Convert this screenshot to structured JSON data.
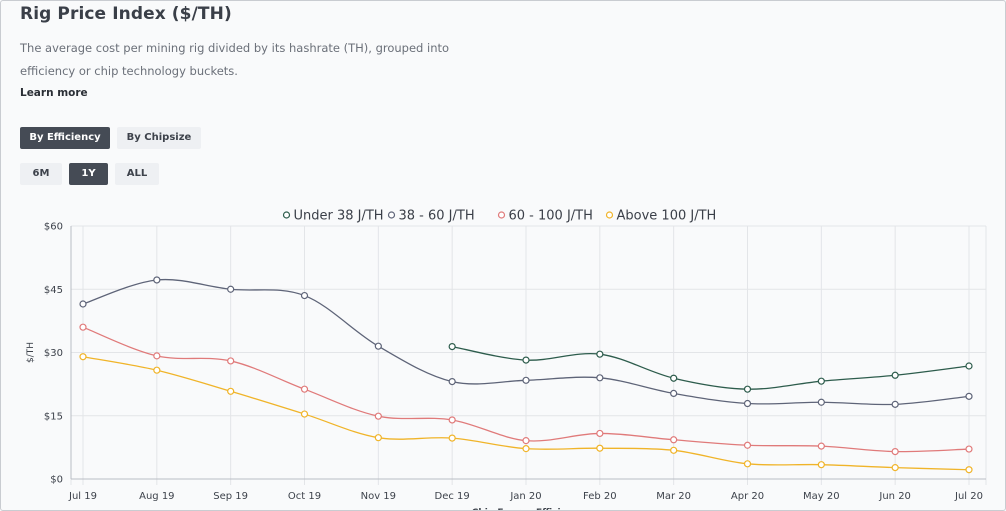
{
  "header": {
    "title": "Rig Price Index ($/TH)",
    "description": "The average cost per mining rig divided by its hashrate (TH), grouped into efficiency or chip technology buckets.",
    "learn_more": "Learn more"
  },
  "group_toggle": {
    "by_efficiency": "By Efficiency",
    "by_chipsize": "By Chipsize",
    "selected": "By Efficiency"
  },
  "range_toggle": {
    "six_months": "6M",
    "one_year": "1Y",
    "all": "ALL",
    "selected": "1Y"
  },
  "chart_data": {
    "type": "line",
    "x": [
      "Jul 19",
      "Aug 19",
      "Sep 19",
      "Oct 19",
      "Nov 19",
      "Dec 19",
      "Jan 20",
      "Feb 20",
      "Mar 20",
      "Apr 20",
      "May 20",
      "Jun 20",
      "Jul 20"
    ],
    "y_ticks": [
      "$0",
      "$15",
      "$30",
      "$45",
      "$60"
    ],
    "ylim": [
      0,
      60
    ],
    "ylabel": "$/TH",
    "xlabel": "Chip Energy Efficiency",
    "grid": true,
    "legend_position": "top",
    "series": [
      {
        "name": "Under 38 J/TH",
        "color": "#2d5c4c",
        "values": [
          null,
          null,
          null,
          null,
          null,
          31.4,
          28.2,
          29.6,
          23.9,
          21.3,
          23.2,
          24.6,
          26.8
        ]
      },
      {
        "name": "38 - 60 J/TH",
        "color": "#5e6478",
        "values": [
          41.5,
          47.2,
          45.0,
          43.5,
          31.5,
          23.1,
          23.4,
          24.0,
          20.3,
          17.9,
          18.2,
          17.7,
          19.6
        ]
      },
      {
        "name": "60 - 100 J/TH",
        "color": "#e07a7a",
        "values": [
          36.0,
          29.2,
          28.0,
          21.3,
          14.9,
          14.0,
          9.1,
          10.8,
          9.3,
          8.0,
          7.8,
          6.5,
          7.1
        ]
      },
      {
        "name": "Above 100 J/TH",
        "color": "#f0b429",
        "values": [
          29.0,
          25.8,
          20.8,
          15.4,
          9.8,
          9.7,
          7.2,
          7.3,
          6.8,
          3.6,
          3.4,
          2.7,
          2.2
        ]
      }
    ]
  }
}
